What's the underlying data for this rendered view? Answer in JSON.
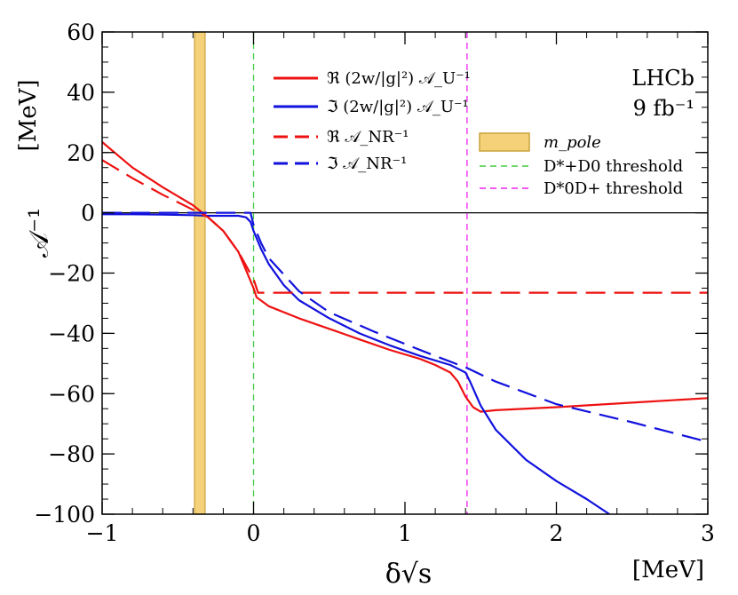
{
  "chart_data": {
    "type": "line",
    "xlabel": "δ√s",
    "xunit": "[MeV]",
    "ylabel": "𝒜⁻¹",
    "yunit": "[MeV]",
    "xlim": [
      -1,
      3
    ],
    "ylim": [
      -100,
      60
    ],
    "xticks": [
      -1,
      0,
      1,
      2,
      3
    ],
    "yticks": [
      60,
      40,
      20,
      0,
      -20,
      -40,
      -60,
      -80,
      -100
    ],
    "xtick_labels": [
      "−1",
      "0",
      "1",
      "2",
      "3"
    ],
    "ytick_labels": [
      "60",
      "40",
      "20",
      "0",
      "−20",
      "−40",
      "−60",
      "−80",
      "−100"
    ],
    "experiment": {
      "name": "LHCb",
      "lumi": "9 fb⁻¹"
    },
    "colors": {
      "real": "#ee1111",
      "imag": "#1111dd",
      "band": "#f5d27a",
      "band_edge": "#c8a23a",
      "green": "#44cc44",
      "magenta": "#ee22ee"
    },
    "pole_band": {
      "x": [
        -0.39,
        -0.32
      ],
      "label": "m_pole"
    },
    "thresholds": [
      {
        "x": 0.0,
        "label": "D*+D0 threshold",
        "label_text": "D",
        "label_sup1": "*+",
        "label_mid": "D",
        "label_sup2": "0",
        "label_tail": " threshold",
        "color": "#44cc44"
      },
      {
        "x": 1.41,
        "label": "D*0D+ threshold",
        "label_text": "D",
        "label_sup1": "*0",
        "label_mid": "D",
        "label_sup2": "+",
        "label_tail": " threshold",
        "color": "#ee22ee"
      }
    ],
    "legend_position": "top-center",
    "series": [
      {
        "name": "ℜ (2w/|g|²) 𝒜_U⁻¹",
        "style": "solid",
        "color": "#ee1111",
        "x": [
          -1,
          -0.8,
          -0.6,
          -0.4,
          -0.3,
          -0.2,
          -0.1,
          -0.05,
          0.0,
          0.02,
          0.1,
          0.3,
          0.5,
          0.7,
          0.9,
          1.1,
          1.2,
          1.3,
          1.35,
          1.4,
          1.45,
          1.5,
          1.6,
          2.0,
          2.5,
          3.0
        ],
        "y": [
          23.5,
          15,
          8.5,
          2.5,
          -1.5,
          -6,
          -13,
          -19,
          -25,
          -28,
          -31,
          -35,
          -38.5,
          -42,
          -45.5,
          -48.5,
          -50.5,
          -53,
          -56,
          -61,
          -64.5,
          -66,
          -65.5,
          -64.5,
          -63,
          -61.5
        ]
      },
      {
        "name": "ℑ (2w/|g|²) 𝒜_U⁻¹",
        "style": "solid",
        "color": "#1111dd",
        "x": [
          -1,
          -0.8,
          -0.6,
          -0.4,
          -0.3,
          -0.2,
          -0.1,
          -0.05,
          -0.02,
          0.0,
          0.05,
          0.1,
          0.2,
          0.3,
          0.5,
          0.7,
          0.9,
          1.1,
          1.3,
          1.4,
          1.43,
          1.5,
          1.6,
          1.8,
          2.0,
          2.2,
          2.35
        ],
        "y": [
          -0.5,
          -0.5,
          -0.6,
          -0.8,
          -1,
          -1,
          -1,
          -1.5,
          -3,
          -6,
          -12,
          -17,
          -24,
          -29,
          -35,
          -40,
          -44,
          -47.5,
          -50.5,
          -53,
          -56,
          -64,
          -72,
          -82,
          -89,
          -95,
          -100
        ]
      },
      {
        "name": "ℜ 𝒜_NR⁻¹",
        "style": "dashed",
        "color": "#ee1111",
        "x": [
          -1,
          -0.8,
          -0.6,
          -0.4,
          -0.3,
          -0.2,
          -0.1,
          0.0,
          0.03,
          0.5,
          1.0,
          2.0,
          3.0
        ],
        "y": [
          17.5,
          11.5,
          6,
          1,
          -1.5,
          -6,
          -13,
          -22,
          -26.5,
          -26.5,
          -26.5,
          -26.5,
          -26.5
        ]
      },
      {
        "name": "ℑ 𝒜_NR⁻¹",
        "style": "dashed",
        "color": "#1111dd",
        "x": [
          -1,
          -0.5,
          -0.1,
          -0.02,
          0.0,
          0.05,
          0.1,
          0.3,
          0.5,
          0.8,
          1.0,
          1.2,
          1.41,
          1.6,
          2.0,
          2.5,
          3.0
        ],
        "y": [
          0,
          0,
          0,
          0,
          -4,
          -10,
          -15,
          -26,
          -33,
          -39.5,
          -43.5,
          -47.5,
          -51.5,
          -56,
          -63.5,
          -69.5,
          -76
        ]
      }
    ]
  }
}
